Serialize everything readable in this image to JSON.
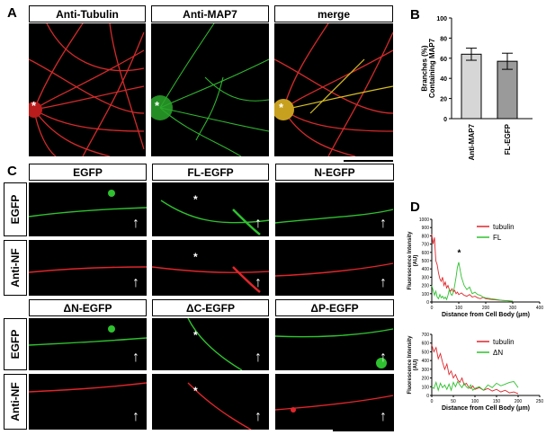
{
  "panels": {
    "a": "A",
    "b": "B",
    "c": "C",
    "d": "D"
  },
  "panel_a": {
    "headers": [
      "Anti-Tubulin",
      "Anti-MAP7",
      "merge"
    ],
    "asterisk": "*"
  },
  "panel_c": {
    "top_headers": [
      "EGFP",
      "FL-EGFP",
      "N-EGFP"
    ],
    "bottom_headers": [
      "ΔN-EGFP",
      "ΔC-EGFP",
      "ΔP-EGFP"
    ],
    "row_labels": [
      "EGFP",
      "Anti-NF",
      "EGFP",
      "Anti-NF"
    ],
    "asterisk": "*",
    "arrow": "↑"
  },
  "colors": {
    "tubulin": "#e0262b",
    "map7": "#2fc12f",
    "bar1": "#d6d6d6",
    "bar2": "#9a9a9a"
  },
  "chart_data": [
    {
      "type": "bar",
      "categories": [
        "Anti-MAP7",
        "FL-EGFP"
      ],
      "values": [
        64,
        57
      ],
      "errors": [
        6,
        8
      ],
      "ylabel": "Branches (%) Containing MAP7",
      "ylim": [
        0,
        100
      ],
      "yticks": [
        "0",
        "20",
        "40",
        "60",
        "80",
        "100"
      ]
    },
    {
      "type": "line",
      "series": [
        {
          "name": "tubulin",
          "x": [
            0,
            5,
            10,
            15,
            20,
            25,
            30,
            35,
            40,
            45,
            50,
            55,
            60,
            65,
            70,
            75,
            80,
            85,
            90,
            95,
            100,
            110,
            120,
            130,
            140,
            150,
            160,
            170,
            180,
            190,
            200,
            220,
            240,
            260,
            280,
            300
          ],
          "values": [
            820,
            700,
            780,
            500,
            450,
            350,
            280,
            250,
            300,
            200,
            240,
            170,
            200,
            150,
            130,
            160,
            120,
            140,
            100,
            120,
            90,
            110,
            80,
            70,
            90,
            60,
            70,
            50,
            40,
            55,
            40,
            30,
            25,
            20,
            15,
            10
          ]
        },
        {
          "name": "FL",
          "x": [
            0,
            5,
            10,
            15,
            20,
            25,
            30,
            35,
            40,
            45,
            50,
            55,
            60,
            65,
            70,
            75,
            80,
            85,
            90,
            95,
            100,
            110,
            120,
            130,
            140,
            150,
            160,
            170,
            180,
            190,
            200,
            220,
            240,
            260,
            280,
            300
          ],
          "values": [
            200,
            140,
            80,
            130,
            60,
            40,
            90,
            50,
            70,
            40,
            60,
            30,
            80,
            150,
            100,
            80,
            120,
            200,
            300,
            420,
            480,
            300,
            200,
            150,
            180,
            100,
            120,
            90,
            80,
            60,
            50,
            40,
            30,
            20,
            15,
            10
          ]
        }
      ],
      "annotation": "*",
      "ylabel": "Fluorescence Intensity (AU)",
      "xlabel": "Distance from Cell Body (μm)",
      "yticks": [
        "0",
        "100",
        "200",
        "300",
        "400",
        "500",
        "600",
        "700",
        "800",
        "900",
        "1000"
      ],
      "xticks": [
        "0",
        "100",
        "200",
        "300",
        "400"
      ],
      "ylim": [
        0,
        1000
      ],
      "xlim": [
        0,
        400
      ]
    },
    {
      "type": "line",
      "series": [
        {
          "name": "tubulin",
          "x": [
            0,
            5,
            10,
            15,
            20,
            25,
            30,
            35,
            40,
            45,
            50,
            55,
            60,
            65,
            70,
            75,
            80,
            85,
            90,
            95,
            100,
            110,
            120,
            130,
            140,
            150,
            160,
            170,
            180,
            190,
            200
          ],
          "values": [
            580,
            500,
            550,
            420,
            480,
            380,
            300,
            360,
            240,
            280,
            200,
            240,
            180,
            150,
            200,
            120,
            140,
            100,
            80,
            110,
            70,
            90,
            60,
            80,
            50,
            70,
            40,
            60,
            30,
            40,
            20
          ]
        },
        {
          "name": "ΔN",
          "x": [
            0,
            5,
            10,
            15,
            20,
            25,
            30,
            35,
            40,
            45,
            50,
            55,
            60,
            65,
            70,
            75,
            80,
            85,
            90,
            95,
            100,
            110,
            120,
            130,
            140,
            150,
            160,
            170,
            180,
            190,
            200
          ],
          "values": [
            100,
            80,
            150,
            60,
            140,
            90,
            120,
            70,
            130,
            60,
            150,
            100,
            160,
            120,
            90,
            140,
            100,
            80,
            120,
            60,
            80,
            100,
            60,
            120,
            90,
            140,
            110,
            130,
            150,
            160,
            90
          ]
        }
      ],
      "ylabel": "Fluorescence Intensity (AU)",
      "xlabel": "Distance from Cell Body (μm)",
      "yticks": [
        "0",
        "100",
        "200",
        "300",
        "400",
        "500",
        "600",
        "700"
      ],
      "xticks": [
        "0",
        "50",
        "100",
        "150",
        "200",
        "250"
      ],
      "ylim": [
        0,
        700
      ],
      "xlim": [
        0,
        250
      ]
    }
  ]
}
